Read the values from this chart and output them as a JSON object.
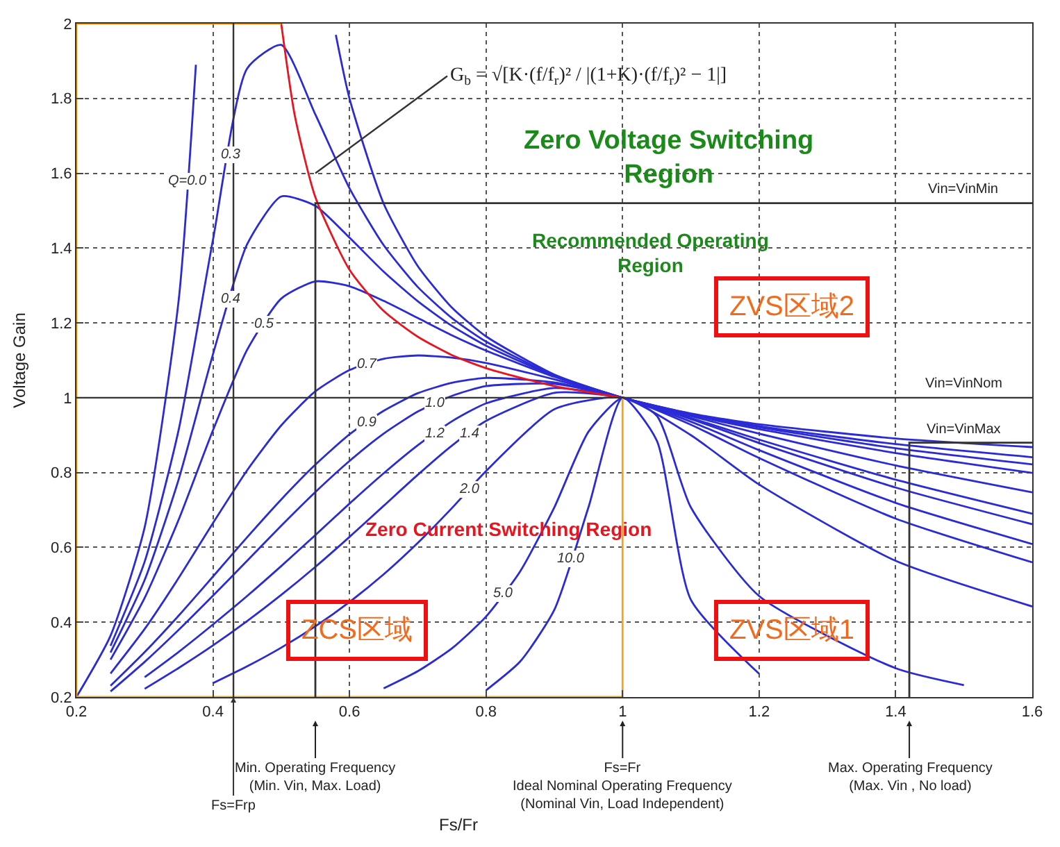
{
  "chart_data": {
    "type": "line",
    "ylabel": "Voltage Gain",
    "x": [
      0.25,
      0.3,
      0.35,
      0.4,
      0.45,
      0.5,
      0.55,
      0.6,
      0.65,
      0.7,
      0.75,
      0.8,
      0.9,
      1.0,
      1.1,
      1.2,
      1.4,
      1.6
    ],
    "series": [
      {
        "name": "Q=0.0",
        "color": "#2b2bd6",
        "x": [
          0.2,
          0.25,
          0.3,
          0.35,
          0.375,
          0.4,
          0.45,
          0.5,
          0.55,
          0.58,
          0.6,
          0.65,
          0.7,
          0.75,
          0.8,
          0.9,
          1.0,
          1.1,
          1.2,
          1.4,
          1.6
        ],
        "values": [
          0.2,
          0.364,
          0.654,
          1.264,
          1.89,
          null,
          null,
          null,
          null,
          1.97,
          1.8,
          1.519,
          1.352,
          1.241,
          1.164,
          1.062,
          1,
          0.958,
          0.929,
          0.891,
          0.868
        ]
      },
      {
        "name": "0.3",
        "color": "#2b2bd6",
        "values": [
          0.337,
          0.562,
          0.916,
          1.422,
          1.88,
          1.943,
          1.757,
          1.56,
          1.408,
          1.296,
          1.213,
          1.15,
          1.06,
          1,
          0.957,
          0.924,
          0.876,
          0.841
        ]
      },
      {
        "name": "0.4",
        "color": "#2b2bd6",
        "values": [
          0.319,
          0.513,
          0.783,
          1.116,
          1.41,
          1.538,
          1.513,
          1.428,
          1.337,
          1.258,
          1.192,
          1.139,
          1.058,
          1,
          0.956,
          0.921,
          0.865,
          0.822
        ]
      },
      {
        "name": "0.5",
        "color": "#2b2bd6",
        "values": [
          0.3,
          0.465,
          0.675,
          0.913,
          1.128,
          1.265,
          1.311,
          1.298,
          1.259,
          1.213,
          1.167,
          1.126,
          1.056,
          1,
          0.954,
          0.916,
          0.852,
          0.799
        ]
      },
      {
        "name": "0.7",
        "color": "#2b2bd6",
        "values": [
          0.263,
          0.382,
          0.519,
          0.665,
          0.806,
          0.926,
          1.017,
          1.074,
          1.104,
          1.113,
          1.107,
          1.093,
          1.049,
          1,
          0.951,
          0.904,
          0.819,
          0.747
        ]
      },
      {
        "name": "0.9",
        "color": "#2b2bd6",
        "values": [
          0.23,
          0.32,
          0.418,
          0.522,
          0.627,
          0.728,
          0.821,
          0.902,
          0.965,
          1.012,
          1.04,
          1.053,
          1.041,
          1,
          0.946,
          0.888,
          0.781,
          0.69
        ]
      },
      {
        "name": "1.0",
        "color": "#2b2bd6",
        "values": [
          0.215,
          0.294,
          0.38,
          0.471,
          0.564,
          0.658,
          0.748,
          0.831,
          0.904,
          0.963,
          1.005,
          1.031,
          1.037,
          1,
          0.943,
          0.879,
          0.76,
          0.662
        ]
      },
      {
        "name": "1.2",
        "color": "#2b2bd6",
        "values": [
          null,
          0.253,
          0.321,
          0.394,
          0.47,
          0.55,
          0.633,
          0.717,
          0.798,
          0.873,
          0.937,
          0.985,
          1.026,
          1,
          0.936,
          0.86,
          0.719,
          0.609
        ]
      },
      {
        "name": "1.4",
        "color": "#2b2bd6",
        "values": [
          null,
          0.222,
          0.278,
          0.338,
          0.403,
          0.473,
          0.548,
          0.628,
          0.711,
          0.794,
          0.872,
          0.938,
          1.013,
          1,
          0.928,
          0.839,
          0.677,
          0.56
        ]
      },
      {
        "name": "2.0",
        "color": "#2b2bd6",
        "values": [
          null,
          null,
          null,
          0.237,
          0.282,
          0.332,
          0.389,
          0.454,
          0.528,
          0.612,
          0.705,
          0.804,
          0.969,
          1,
          0.9,
          0.768,
          0.564,
          0.442
        ]
      },
      {
        "name": "5.0",
        "color": "#2b2bd6",
        "x": [
          0.65,
          0.7,
          0.75,
          0.8,
          0.85,
          0.9,
          0.95,
          1.0,
          1.05,
          1.1,
          1.2,
          1.4,
          1.5
        ],
        "values": [
          0.223,
          0.269,
          0.33,
          0.415,
          0.536,
          0.707,
          0.909,
          1,
          0.952,
          0.707,
          0.47,
          0.277,
          0.232
        ]
      },
      {
        "name": "10.0",
        "color": "#2b2bd6",
        "x": [
          0.8,
          0.85,
          0.9,
          0.95,
          1.0,
          1.05,
          1.1,
          1.2
        ],
        "values": [
          0.218,
          0.295,
          0.433,
          0.707,
          1,
          0.886,
          0.46,
          0.262
        ]
      },
      {
        "color": "#e8141e",
        "x": [
          0.5,
          0.52,
          0.55,
          0.6,
          0.65,
          0.7,
          0.75,
          0.8,
          0.9,
          1.0
        ],
        "values": [
          2,
          1.753,
          1.536,
          1.342,
          1.232,
          1.163,
          1.114,
          1.079,
          1.031,
          1
        ]
      },
      {
        "color": "#f7a21b",
        "x": [
          0.5,
          0.2,
          0.2,
          1.0,
          1.0
        ],
        "values": [
          2,
          2,
          0.2,
          0.2,
          1
        ]
      },
      {
        "color": "#333333",
        "x": [
          0.55,
          0.55,
          1.6
        ],
        "values": [
          0.2,
          1.52,
          1.52
        ]
      },
      {
        "color": "#333333",
        "x": [
          1.42,
          1.42,
          1.6
        ],
        "values": [
          0.2,
          0.88,
          0.88
        ]
      }
    ],
    "ref_lines": [
      {
        "axis": "x",
        "value": 0.43,
        "label": "Fs=Frp",
        "color": "#333333"
      },
      {
        "axis": "y",
        "value": 1.0,
        "label": "Vin=VinNom",
        "color": "#333333"
      }
    ],
    "xlim": [
      0.2,
      1.6
    ],
    "xticks": [
      0.2,
      0.4,
      0.6,
      0.8,
      {
        "value": 1.0,
        "label": "1"
      },
      1.2,
      1.4,
      1.6
    ],
    "ylim": [
      0.2,
      2
    ],
    "yticks": [
      0.2,
      0.4,
      0.6,
      0.8,
      {
        "value": 1.0,
        "label": "1"
      },
      1.2,
      1.4,
      1.6,
      1.8,
      {
        "value": 2.0,
        "label": "2"
      }
    ],
    "grid": true,
    "legend": false,
    "marker": "none",
    "line_style": "solid",
    "annotations": [
      "Zero Voltage Switching\nRegion",
      "Recommended Operating\nRegion",
      "Zero Current Switching Region",
      "ZVS区域2",
      "ZCS区域",
      "ZVS区域1",
      "Fs/Fr",
      {
        "text": "Vin=VinMin",
        "x": 1.5,
        "y": 1.52
      },
      {
        "text": "Vin=VinMax",
        "x": 1.5,
        "y": 0.88
      },
      {
        "text": "G$_{b}$ = √[K·(f/f$_{r}$)² / |(1+K)·(f/f$_{r}$)² − 1|]",
        "x": 0.55,
        "y": 1.6
      },
      {
        "text": "Min. Operating Frequency\n(Min. Vin, Max. Load)",
        "x": 0.55
      },
      {
        "text": "Fs=Fr\nIdeal Nominal Operating Frequency\n(Nominal Vin, Load Independent)",
        "x": 1.0
      },
      {
        "text": "Max. Operating Frequency\n(Max. Vin , No load)",
        "x": 1.42
      }
    ]
  }
}
